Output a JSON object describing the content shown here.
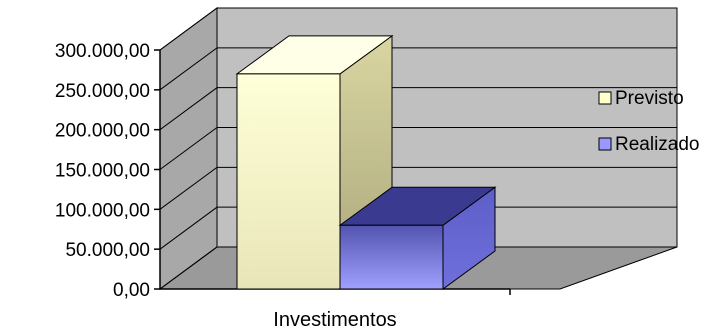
{
  "chart_data": {
    "type": "bar",
    "three_d": true,
    "categories": [
      "Investimentos"
    ],
    "series": [
      {
        "name": "Previsto",
        "values": [
          270000
        ],
        "color": "#ffffcc"
      },
      {
        "name": "Realizado",
        "values": [
          80000
        ],
        "color": "#9999ff"
      }
    ],
    "ylim": [
      0,
      300000
    ],
    "yticks": [
      0,
      50000,
      100000,
      150000,
      200000,
      250000,
      300000
    ],
    "ytick_labels": [
      "0,00",
      "50.000,00",
      "100.000,00",
      "150.000,00",
      "200.000,00",
      "250.000,00",
      "300.000,00"
    ],
    "grid": true,
    "legend_position": "right",
    "title": "",
    "xlabel": "",
    "ylabel": "",
    "wall_color": "#c0c0c0"
  }
}
